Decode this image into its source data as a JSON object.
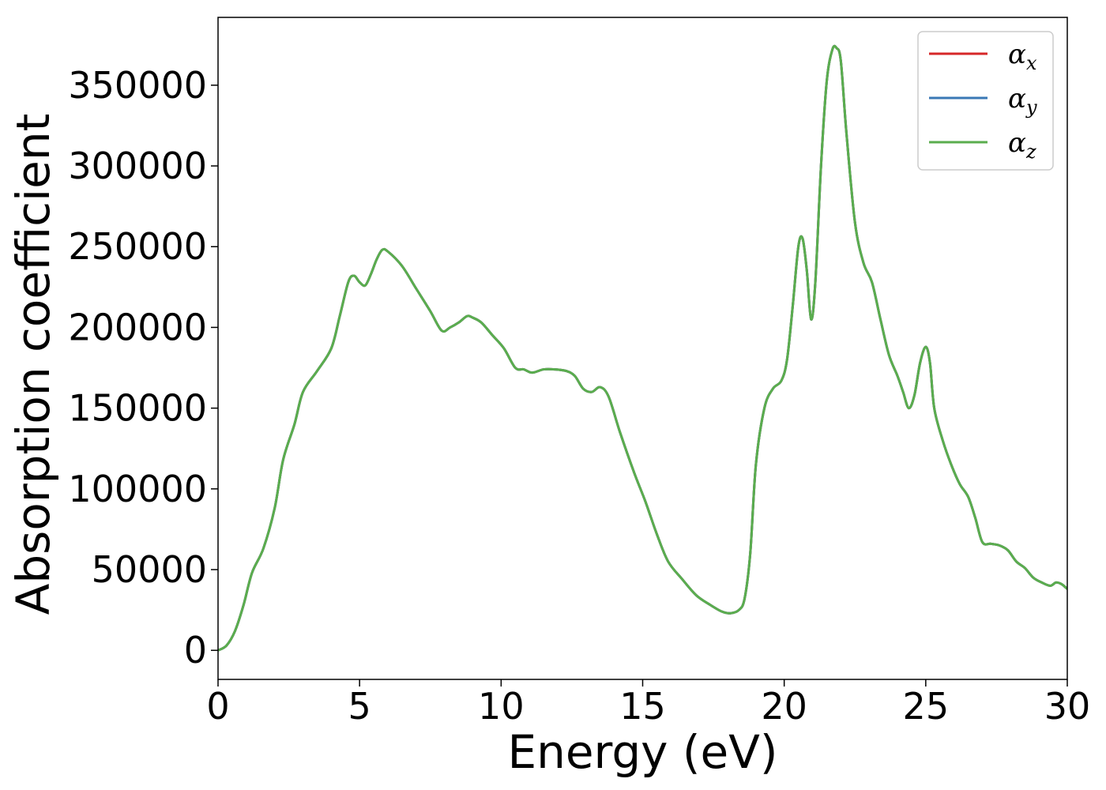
{
  "chart_data": {
    "type": "line",
    "title": "",
    "xlabel": "Energy (eV)",
    "ylabel": "Absorption coefficient",
    "xlim": [
      0,
      30
    ],
    "ylim": [
      -18000,
      392000
    ],
    "xticks": [
      0,
      5,
      10,
      15,
      20,
      25,
      30
    ],
    "yticks": [
      0,
      50000,
      100000,
      150000,
      200000,
      250000,
      300000,
      350000
    ],
    "grid": false,
    "legend": {
      "placement": "top-right"
    },
    "x": [
      0,
      0.3,
      0.6,
      0.9,
      1.2,
      1.6,
      2.0,
      2.3,
      2.7,
      3.0,
      3.5,
      4.0,
      4.3,
      4.6,
      4.8,
      5.0,
      5.2,
      5.4,
      5.6,
      5.8,
      6.0,
      6.5,
      7.0,
      7.5,
      7.9,
      8.2,
      8.5,
      8.8,
      9.0,
      9.3,
      9.7,
      10.1,
      10.5,
      10.8,
      11.1,
      11.5,
      11.9,
      12.3,
      12.6,
      12.9,
      13.2,
      13.5,
      13.8,
      14.2,
      14.7,
      15.1,
      15.5,
      15.9,
      16.4,
      16.9,
      17.4,
      17.8,
      18.1,
      18.4,
      18.6,
      18.8,
      19.0,
      19.3,
      19.6,
      19.9,
      20.1,
      20.3,
      20.5,
      20.65,
      20.8,
      20.95,
      21.1,
      21.3,
      21.5,
      21.7,
      21.85,
      22.0,
      22.2,
      22.5,
      22.8,
      23.1,
      23.4,
      23.7,
      24.0,
      24.2,
      24.4,
      24.6,
      24.8,
      25.0,
      25.15,
      25.3,
      25.6,
      25.9,
      26.2,
      26.5,
      26.75,
      27.0,
      27.3,
      27.6,
      27.9,
      28.2,
      28.5,
      28.8,
      29.1,
      29.4,
      29.6,
      29.8,
      30.0
    ],
    "series": [
      {
        "name": "αx",
        "label_base": "α",
        "label_sub": "x",
        "color": "#d62728",
        "values": [
          0,
          3000,
          12000,
          28000,
          48000,
          63000,
          88000,
          118000,
          140000,
          160000,
          173000,
          187000,
          207000,
          228000,
          232000,
          228000,
          226000,
          233000,
          242000,
          248000,
          247000,
          238000,
          224000,
          210000,
          198000,
          200000,
          203000,
          207000,
          206000,
          203000,
          195000,
          187000,
          175000,
          174000,
          172000,
          174000,
          174000,
          173000,
          170000,
          162000,
          160000,
          163000,
          157000,
          135000,
          110000,
          92000,
          72000,
          55000,
          44000,
          34000,
          28000,
          24000,
          23000,
          25000,
          32000,
          60000,
          115000,
          150000,
          162000,
          167000,
          180000,
          213000,
          250000,
          255000,
          235000,
          205000,
          228000,
          300000,
          352000,
          372000,
          373000,
          365000,
          320000,
          265000,
          240000,
          228000,
          205000,
          183000,
          170000,
          160000,
          150000,
          158000,
          178000,
          188000,
          178000,
          150000,
          130000,
          115000,
          103000,
          95000,
          82000,
          67000,
          66000,
          65000,
          62000,
          55000,
          51000,
          45000,
          42000,
          40000,
          42000,
          41000,
          38000
        ]
      },
      {
        "name": "αy",
        "label_base": "α",
        "label_sub": "y",
        "color": "#3a78b5",
        "values": [
          0,
          3000,
          12000,
          28000,
          48000,
          63000,
          88000,
          118000,
          140000,
          160000,
          173000,
          187000,
          207000,
          228000,
          232000,
          228000,
          226000,
          233000,
          242000,
          248000,
          247000,
          238000,
          224000,
          210000,
          198000,
          200000,
          203000,
          207000,
          206000,
          203000,
          195000,
          187000,
          175000,
          174000,
          172000,
          174000,
          174000,
          173000,
          170000,
          162000,
          160000,
          163000,
          157000,
          135000,
          110000,
          92000,
          72000,
          55000,
          44000,
          34000,
          28000,
          24000,
          23000,
          25000,
          32000,
          60000,
          115000,
          150000,
          162000,
          167000,
          180000,
          213000,
          250000,
          255000,
          235000,
          205000,
          228000,
          300000,
          352000,
          372000,
          373000,
          365000,
          320000,
          265000,
          240000,
          228000,
          205000,
          183000,
          170000,
          160000,
          150000,
          158000,
          178000,
          188000,
          178000,
          150000,
          130000,
          115000,
          103000,
          95000,
          82000,
          67000,
          66000,
          65000,
          62000,
          55000,
          51000,
          45000,
          42000,
          40000,
          42000,
          41000,
          38000
        ]
      },
      {
        "name": "αz",
        "label_base": "α",
        "label_sub": "z",
        "color": "#5aad4e",
        "values": [
          0,
          3000,
          12000,
          28000,
          48000,
          63000,
          88000,
          118000,
          140000,
          160000,
          173000,
          187000,
          207000,
          228000,
          232000,
          228000,
          226000,
          233000,
          242000,
          248000,
          247000,
          238000,
          224000,
          210000,
          198000,
          200000,
          203000,
          207000,
          206000,
          203000,
          195000,
          187000,
          175000,
          174000,
          172000,
          174000,
          174000,
          173000,
          170000,
          162000,
          160000,
          163000,
          157000,
          135000,
          110000,
          92000,
          72000,
          55000,
          44000,
          34000,
          28000,
          24000,
          23000,
          25000,
          32000,
          60000,
          115000,
          150000,
          162000,
          167000,
          180000,
          213000,
          250000,
          255000,
          235000,
          205000,
          228000,
          300000,
          352000,
          372000,
          373000,
          365000,
          320000,
          265000,
          240000,
          228000,
          205000,
          183000,
          170000,
          160000,
          150000,
          158000,
          178000,
          188000,
          178000,
          150000,
          130000,
          115000,
          103000,
          95000,
          82000,
          67000,
          66000,
          65000,
          62000,
          55000,
          51000,
          45000,
          42000,
          40000,
          42000,
          41000,
          38000
        ]
      }
    ]
  }
}
